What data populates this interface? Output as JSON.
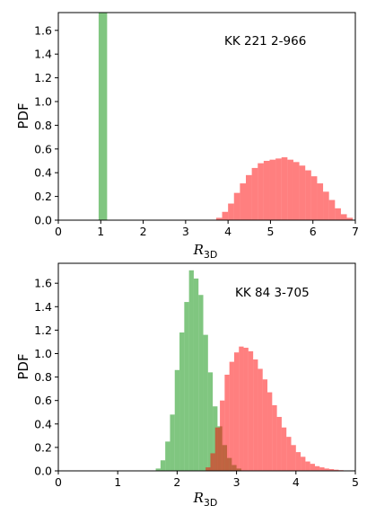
{
  "chart_data": [
    {
      "type": "histogram",
      "panel": "top",
      "annotation": "KK 221 2-966",
      "xlabel": "R",
      "xlabel_sub": "3D",
      "ylabel": "PDF",
      "xlim": [
        0,
        7
      ],
      "ylim": [
        0,
        1.75
      ],
      "xticks": [
        0,
        1,
        2,
        3,
        4,
        5,
        6,
        7
      ],
      "yticks": [
        0.0,
        0.2,
        0.4,
        0.6,
        0.8,
        1.0,
        1.2,
        1.4,
        1.6
      ],
      "series": [
        {
          "color": "#2ca02c",
          "opacity": 0.6,
          "bin_edges": [
            0.95,
            1.15
          ],
          "counts": [
            1.75
          ]
        },
        {
          "color": "#ff0000",
          "opacity": 0.5,
          "bin_edges": [
            3.72,
            3.86,
            4.0,
            4.14,
            4.28,
            4.42,
            4.56,
            4.7,
            4.84,
            4.98,
            5.12,
            5.26,
            5.4,
            5.54,
            5.68,
            5.82,
            5.96,
            6.1,
            6.24,
            6.38,
            6.52,
            6.66,
            6.8,
            6.94
          ],
          "counts": [
            0.02,
            0.07,
            0.14,
            0.23,
            0.31,
            0.38,
            0.44,
            0.48,
            0.5,
            0.51,
            0.52,
            0.53,
            0.51,
            0.49,
            0.46,
            0.42,
            0.37,
            0.31,
            0.24,
            0.17,
            0.1,
            0.05,
            0.02
          ]
        }
      ]
    },
    {
      "type": "histogram",
      "panel": "bottom",
      "annotation": "KK 84 3-705",
      "xlabel": "R",
      "xlabel_sub": "3D",
      "ylabel": "PDF",
      "xlim": [
        0,
        5
      ],
      "ylim": [
        0,
        1.77
      ],
      "xticks": [
        0,
        1,
        2,
        3,
        4,
        5
      ],
      "yticks": [
        0.0,
        0.2,
        0.4,
        0.6,
        0.8,
        1.0,
        1.2,
        1.4,
        1.6
      ],
      "series": [
        {
          "color": "#2ca02c",
          "opacity": 0.6,
          "bin_edges": [
            1.64,
            1.72,
            1.8,
            1.88,
            1.96,
            2.04,
            2.12,
            2.2,
            2.28,
            2.36,
            2.44,
            2.52,
            2.6,
            2.68,
            2.76,
            2.84,
            2.92,
            3.0,
            3.08
          ],
          "counts": [
            0.02,
            0.09,
            0.25,
            0.48,
            0.86,
            1.18,
            1.44,
            1.71,
            1.64,
            1.5,
            1.16,
            0.84,
            0.55,
            0.38,
            0.22,
            0.11,
            0.05,
            0.02
          ]
        },
        {
          "color": "#ff0000",
          "opacity": 0.5,
          "bin_edges": [
            2.48,
            2.56,
            2.64,
            2.72,
            2.8,
            2.88,
            2.96,
            3.04,
            3.12,
            3.2,
            3.28,
            3.36,
            3.44,
            3.52,
            3.6,
            3.68,
            3.76,
            3.84,
            3.92,
            4.0,
            4.08,
            4.16,
            4.24,
            4.32,
            4.4,
            4.48,
            4.56,
            4.64,
            4.72,
            4.8,
            4.88
          ],
          "counts": [
            0.03,
            0.15,
            0.37,
            0.6,
            0.82,
            0.93,
            1.01,
            1.06,
            1.05,
            1.02,
            0.95,
            0.87,
            0.78,
            0.67,
            0.56,
            0.46,
            0.37,
            0.29,
            0.22,
            0.16,
            0.12,
            0.08,
            0.06,
            0.04,
            0.03,
            0.02,
            0.015,
            0.01,
            0.006,
            0.003
          ]
        }
      ]
    }
  ]
}
